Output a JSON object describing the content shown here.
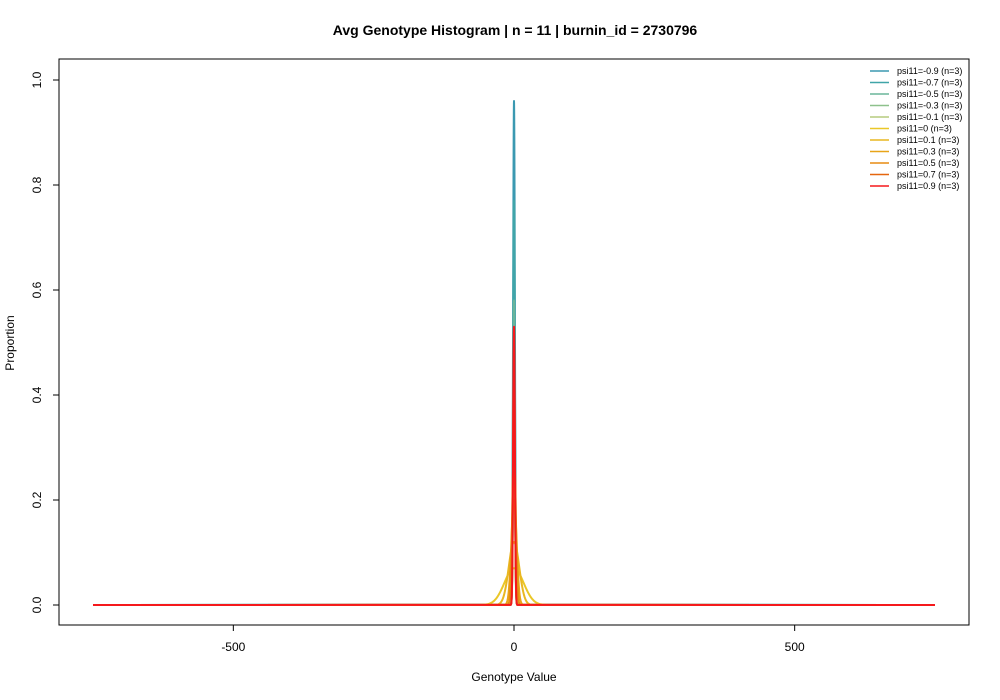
{
  "chart_data": {
    "type": "line",
    "title": "Avg Genotype Histogram | n = 11 | burnin_id = 2730796",
    "xlabel": "Genotype Value",
    "ylabel": "Proportion",
    "xlim": [
      -750,
      750
    ],
    "ylim": [
      0,
      1.0
    ],
    "x_ticks": [
      -500,
      0,
      500
    ],
    "x_tick_labels": [
      "-500",
      "0",
      "500"
    ],
    "y_ticks": [
      0.0,
      0.2,
      0.4,
      0.6,
      0.8,
      1.0
    ],
    "y_tick_labels": [
      "0.0",
      "0.2",
      "0.4",
      "0.6",
      "0.8",
      "1.0"
    ],
    "grid": false,
    "legend_position": "top-right",
    "series": [
      {
        "name": "psi11=-0.9 (n=3)",
        "color": "#3B99B1",
        "peak": 0.96,
        "half_width": 2
      },
      {
        "name": "psi11=-0.7 (n=3)",
        "color": "#40A5A8",
        "peak": 0.77,
        "half_width": 2
      },
      {
        "name": "psi11=-0.5 (n=3)",
        "color": "#6AB59A",
        "peak": 0.58,
        "half_width": 2
      },
      {
        "name": "psi11=-0.3 (n=3)",
        "color": "#8EC18C",
        "peak": 0.42,
        "half_width": 2
      },
      {
        "name": "psi11=-0.1 (n=3)",
        "color": "#B5CB7F",
        "peak": 0.23,
        "half_width": 3
      },
      {
        "name": "psi11=0 (n=3)",
        "color": "#EAC728",
        "peak": 0.07,
        "half_width": 22
      },
      {
        "name": "psi11=0.1 (n=3)",
        "color": "#E9B721",
        "peak": 0.12,
        "half_width": 12
      },
      {
        "name": "psi11=0.3 (n=3)",
        "color": "#E8A419",
        "peak": 0.2,
        "half_width": 6
      },
      {
        "name": "psi11=0.5 (n=3)",
        "color": "#E78C12",
        "peak": 0.3,
        "half_width": 4
      },
      {
        "name": "psi11=0.7 (n=3)",
        "color": "#E5660E",
        "peak": 0.49,
        "half_width": 2
      },
      {
        "name": "psi11=0.9 (n=3)",
        "color": "#F5191C",
        "peak": 0.53,
        "half_width": 2
      }
    ]
  }
}
